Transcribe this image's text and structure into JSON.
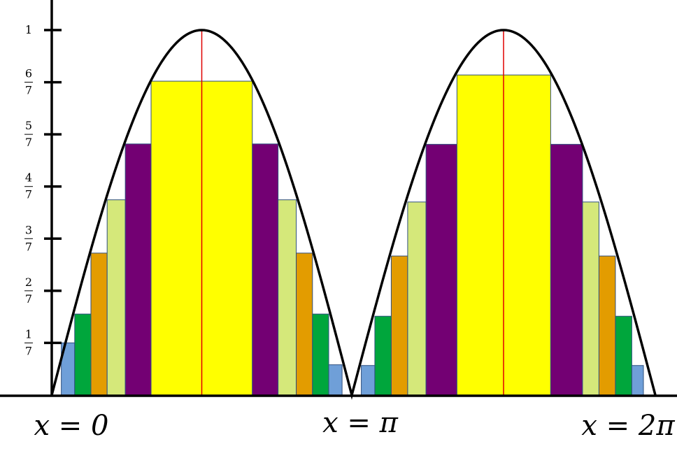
{
  "chart_data": {
    "type": "bar",
    "description_of_structure": "",
    "xlim": [
      0,
      6.2832
    ],
    "ylim": [
      0,
      1
    ],
    "grid": false,
    "curve": {
      "name": "",
      "color": "#000000"
    },
    "x_labels": [
      {
        "x": 0,
        "text": "x = 0"
      },
      {
        "x": 3.1416,
        "text": "x = π"
      },
      {
        "x": 6.2832,
        "text": "x = 2π"
      }
    ],
    "y_ticks": [
      {
        "y": 0.142857,
        "num": "1",
        "den": "7"
      },
      {
        "y": 0.285714,
        "num": "2",
        "den": "7"
      },
      {
        "y": 0.428571,
        "num": "3",
        "den": "7"
      },
      {
        "y": 0.571429,
        "num": "4",
        "den": "7"
      },
      {
        "y": 0.714286,
        "num": "5",
        "den": "7"
      },
      {
        "y": 0.857143,
        "num": "6",
        "den": "7"
      },
      {
        "y": 1.0,
        "num": "1",
        "den": ""
      }
    ],
    "peak_lines": [
      {
        "x": 1.5708,
        "color": "#e00000"
      },
      {
        "x": 4.7124,
        "color": "#e00000"
      }
    ],
    "bars": [
      {
        "x0": 0.1,
        "x1": 0.24,
        "value": 0.143,
        "color": "#6f9fd8"
      },
      {
        "x0": 0.24,
        "x1": 0.41,
        "value": 0.222,
        "color": "#00a63c"
      },
      {
        "x0": 0.41,
        "x1": 0.58,
        "value": 0.389,
        "color": "#e39c00"
      },
      {
        "x0": 0.58,
        "x1": 0.77,
        "value": 0.535,
        "color": "#d5e87a"
      },
      {
        "x0": 0.77,
        "x1": 1.04,
        "value": 0.688,
        "color": "#730073"
      },
      {
        "x0": 1.04,
        "x1": 2.1,
        "value": 0.86,
        "color": "#ffff00"
      },
      {
        "x0": 2.1,
        "x1": 2.37,
        "value": 0.688,
        "color": "#730073"
      },
      {
        "x0": 2.37,
        "x1": 2.56,
        "value": 0.535,
        "color": "#d5e87a"
      },
      {
        "x0": 2.56,
        "x1": 2.73,
        "value": 0.389,
        "color": "#e39c00"
      },
      {
        "x0": 2.73,
        "x1": 2.9,
        "value": 0.222,
        "color": "#00a63c"
      },
      {
        "x0": 2.9,
        "x1": 3.04,
        "value": 0.083,
        "color": "#6f9fd8"
      },
      {
        "x0": 3.24,
        "x1": 3.38,
        "value": 0.081,
        "color": "#6f9fd8"
      },
      {
        "x0": 3.38,
        "x1": 3.55,
        "value": 0.216,
        "color": "#00a63c"
      },
      {
        "x0": 3.55,
        "x1": 3.72,
        "value": 0.381,
        "color": "#e39c00"
      },
      {
        "x0": 3.72,
        "x1": 3.91,
        "value": 0.529,
        "color": "#d5e87a"
      },
      {
        "x0": 3.91,
        "x1": 4.23,
        "value": 0.687,
        "color": "#730073"
      },
      {
        "x0": 4.23,
        "x1": 5.2,
        "value": 0.877,
        "color": "#ffff00"
      },
      {
        "x0": 5.2,
        "x1": 5.53,
        "value": 0.687,
        "color": "#730073"
      },
      {
        "x0": 5.53,
        "x1": 5.7,
        "value": 0.529,
        "color": "#d5e87a"
      },
      {
        "x0": 5.7,
        "x1": 5.87,
        "value": 0.381,
        "color": "#e39c00"
      },
      {
        "x0": 5.87,
        "x1": 6.04,
        "value": 0.216,
        "color": "#00a63c"
      },
      {
        "x0": 6.04,
        "x1": 6.16,
        "value": 0.081,
        "color": "#6f9fd8"
      }
    ]
  }
}
